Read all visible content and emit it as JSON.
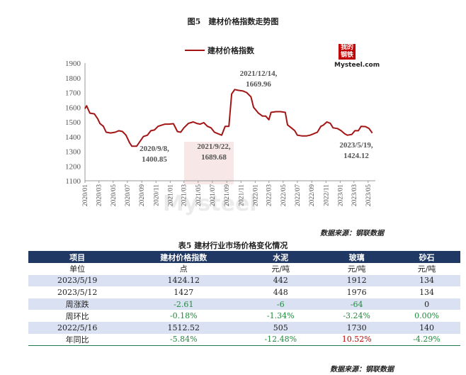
{
  "figure_title": "图5　建材价格指数走势图",
  "source_label": "数据来源：钢联数据",
  "logo": {
    "top_text": "我的钢铁",
    "bottom_text": "Mysteel.com"
  },
  "watermark": {
    "text": "Mysteel"
  },
  "chart_data": {
    "type": "line",
    "legend_position": "top-left",
    "grid": false,
    "ylim": [
      1100,
      1900
    ],
    "yticks": [
      1100,
      1200,
      1300,
      1400,
      1500,
      1600,
      1700,
      1800,
      1900
    ],
    "xlim": [
      "2020/01",
      "2023/06"
    ],
    "xtick_labels": [
      "2020/01",
      "2020/03",
      "2020/05",
      "2020/07",
      "2020/09",
      "2020/11",
      "2021/01",
      "2021/03",
      "2021/05",
      "2021/07",
      "2021/09",
      "2021/11",
      "2022/01",
      "2022/03",
      "2022/05",
      "2022/07",
      "2022/09",
      "2022/11",
      "2023/01",
      "2023/03",
      "2023/05"
    ],
    "series": [
      {
        "name": "建材价格指数",
        "color": "#a31515",
        "points": [
          [
            "2020/01",
            1590
          ],
          [
            "2020/01/08",
            1610
          ],
          [
            "2020/01/22",
            1560
          ],
          [
            "2020/02/10",
            1555
          ],
          [
            "2020/02/25",
            1520
          ],
          [
            "2020/03/05",
            1490
          ],
          [
            "2020/03/20",
            1470
          ],
          [
            "2020/04/01",
            1430
          ],
          [
            "2020/04/20",
            1425
          ],
          [
            "2020/05/10",
            1430
          ],
          [
            "2020/05/25",
            1440
          ],
          [
            "2020/06/10",
            1435
          ],
          [
            "2020/06/25",
            1410
          ],
          [
            "2020/07/10",
            1360
          ],
          [
            "2020/07/20",
            1335
          ],
          [
            "2020/08/10",
            1335
          ],
          [
            "2020/09/08",
            1400.85
          ],
          [
            "2020/09/25",
            1410
          ],
          [
            "2020/10/10",
            1440
          ],
          [
            "2020/10/25",
            1445
          ],
          [
            "2020/11/10",
            1470
          ],
          [
            "2020/11/25",
            1478
          ],
          [
            "2020/12/10",
            1485
          ],
          [
            "2020/12/25",
            1485
          ],
          [
            "2021/01/15",
            1488
          ],
          [
            "2021/02/01",
            1435
          ],
          [
            "2021/02/15",
            1430
          ],
          [
            "2021/03/01",
            1460
          ],
          [
            "2021/03/20",
            1490
          ],
          [
            "2021/04/10",
            1500
          ],
          [
            "2021/04/25",
            1490
          ],
          [
            "2021/05/10",
            1485
          ],
          [
            "2021/05/25",
            1495
          ],
          [
            "2021/06/10",
            1470
          ],
          [
            "2021/06/25",
            1460
          ],
          [
            "2021/07/10",
            1430
          ],
          [
            "2021/07/25",
            1420
          ],
          [
            "2021/08/10",
            1410
          ],
          [
            "2021/08/25",
            1470
          ],
          [
            "2021/09/10",
            1470
          ],
          [
            "2021/09/22",
            1689.68
          ],
          [
            "2021/10/05",
            1720
          ],
          [
            "2021/10/20",
            1715
          ],
          [
            "2021/11/10",
            1710
          ],
          [
            "2021/11/25",
            1700
          ],
          [
            "2021/12/14",
            1669.96
          ],
          [
            "2021/12/25",
            1600
          ],
          [
            "2022/01/15",
            1560
          ],
          [
            "2022/02/01",
            1540
          ],
          [
            "2022/02/15",
            1540
          ],
          [
            "2022/03/01",
            1515
          ],
          [
            "2022/03/10",
            1565
          ],
          [
            "2022/04/01",
            1570
          ],
          [
            "2022/04/20",
            1570
          ],
          [
            "2022/05/10",
            1565
          ],
          [
            "2022/05/20",
            1480
          ],
          [
            "2022/06/05",
            1460
          ],
          [
            "2022/06/20",
            1440
          ],
          [
            "2022/07/01",
            1410
          ],
          [
            "2022/07/20",
            1405
          ],
          [
            "2022/08/10",
            1405
          ],
          [
            "2022/08/25",
            1410
          ],
          [
            "2022/09/10",
            1420
          ],
          [
            "2022/09/25",
            1430
          ],
          [
            "2022/10/10",
            1470
          ],
          [
            "2022/10/20",
            1478
          ],
          [
            "2022/11/05",
            1500
          ],
          [
            "2022/11/20",
            1490
          ],
          [
            "2022/12/01",
            1460
          ],
          [
            "2022/12/20",
            1455
          ],
          [
            "2023/01/05",
            1440
          ],
          [
            "2023/01/20",
            1420
          ],
          [
            "2023/02/01",
            1410
          ],
          [
            "2023/02/20",
            1415
          ],
          [
            "2023/03/05",
            1440
          ],
          [
            "2023/03/20",
            1440
          ],
          [
            "2023/04/01",
            1470
          ],
          [
            "2023/04/20",
            1468
          ],
          [
            "2023/05/05",
            1455
          ],
          [
            "2023/05/19",
            1424.12
          ]
        ]
      }
    ],
    "annotations": [
      {
        "date_label": "2020/9/8,",
        "value_label": "1400.85"
      },
      {
        "date_label": "2021/9/22,",
        "value_label": "1689.68"
      },
      {
        "date_label": "2021/12/14,",
        "value_label": "1669.96"
      },
      {
        "date_label": "2023/5/19,",
        "value_label": "1424.12"
      }
    ]
  },
  "table": {
    "title": "表5 建材行业市场价格变化情况",
    "headers": [
      "项目",
      "建材价格指数",
      "水泥",
      "玻璃",
      "砂石"
    ],
    "rows": [
      [
        "单位",
        "点",
        "元/吨",
        "元/吨",
        "元/吨"
      ],
      [
        "2023/5/19",
        "1424.12",
        "442",
        "1912",
        "134"
      ],
      [
        "2023/5/12",
        "1427",
        "448",
        "1976",
        "134"
      ],
      [
        "周涨跌",
        "-2.61",
        "-6",
        "-64",
        "0"
      ],
      [
        "周环比",
        "-0.18%",
        "-1.34%",
        "-3.24%",
        "0.00%"
      ],
      [
        "2022/5/16",
        "1512.52",
        "505",
        "1730",
        "140"
      ],
      [
        "年同比",
        "-5.84%",
        "-12.48%",
        "10.52%",
        "-4.29%"
      ]
    ],
    "shaded_rows": [
      1,
      3,
      5
    ],
    "cell_colors": {
      "3": [
        "",
        "#1e8a3c",
        "#1e8a3c",
        "#1e8a3c",
        ""
      ],
      "4": [
        "",
        "#1e8a3c",
        "#1e8a3c",
        "#1e8a3c",
        "#1e8a3c"
      ],
      "6": [
        "",
        "#1e8a3c",
        "#1e8a3c",
        "#c00000",
        "#1e8a3c"
      ]
    }
  }
}
